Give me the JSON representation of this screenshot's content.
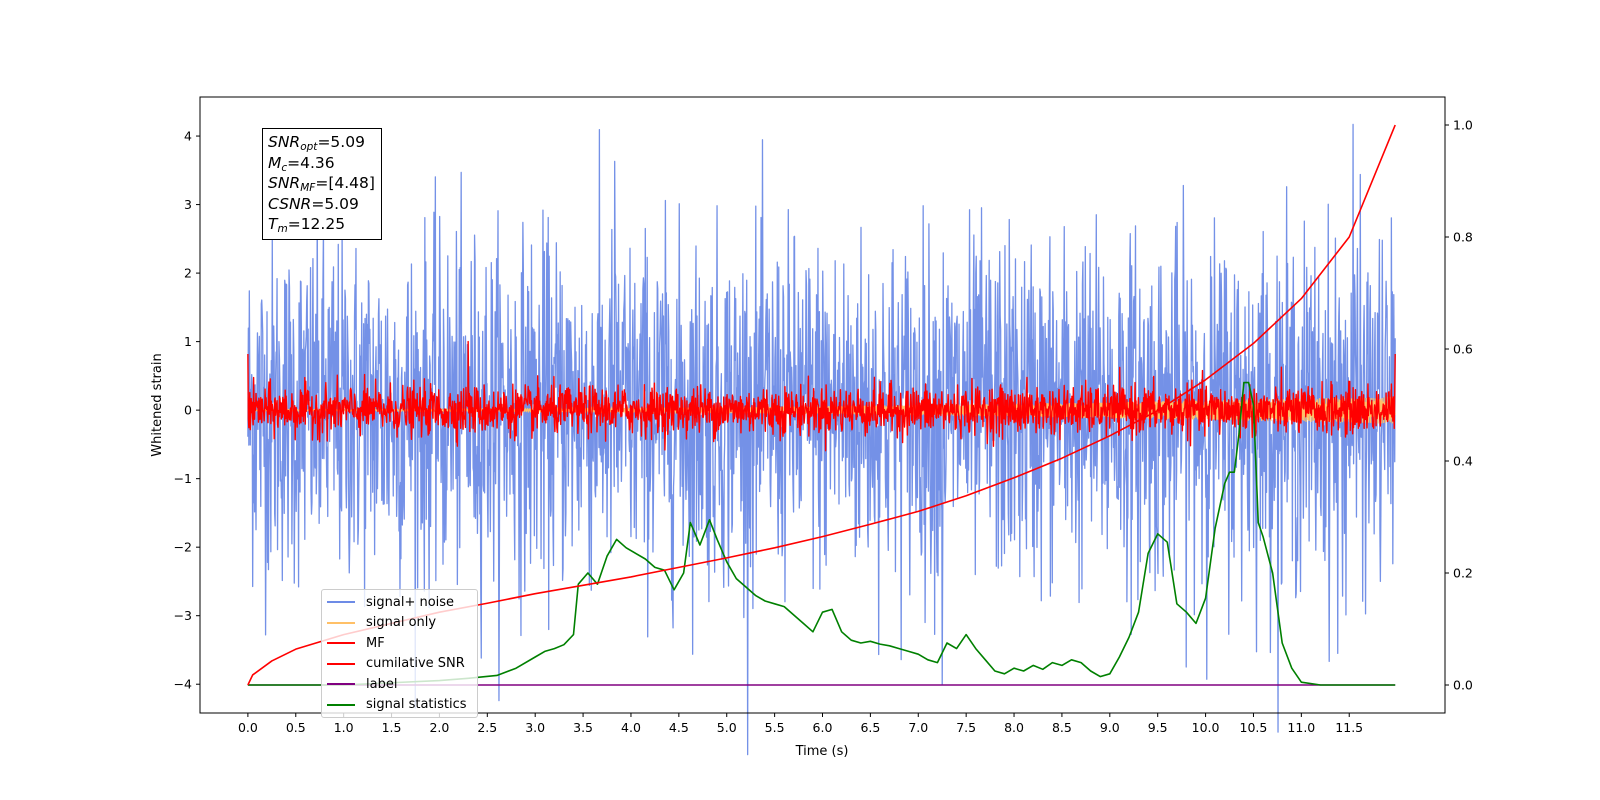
{
  "chart_data": {
    "type": "line",
    "xlabel": "Time (s)",
    "ylabel": "Whitened strain",
    "x_ticks": [
      0.0,
      0.5,
      1.0,
      1.5,
      2.0,
      2.5,
      3.0,
      3.5,
      4.0,
      4.5,
      5.0,
      5.5,
      6.0,
      6.5,
      7.0,
      7.5,
      8.0,
      8.5,
      9.0,
      9.5,
      10.0,
      10.5,
      11.0,
      11.5
    ],
    "x_tick_labels": [
      "0.0",
      "0.5",
      "1.0",
      "1.5",
      "2.0",
      "2.5",
      "3.0",
      "3.5",
      "4.0",
      "4.5",
      "5.0",
      "5.5",
      "6.0",
      "6.5",
      "7.0",
      "7.5",
      "8.0",
      "8.5",
      "9.0",
      "9.5",
      "10.0",
      "10.5",
      "11.0",
      "11.5"
    ],
    "xlim": [
      -0.5,
      12.5
    ],
    "ylim_left": [
      -4.42,
      4.57
    ],
    "y_left_ticks": [
      4,
      3,
      2,
      1,
      0,
      -1,
      -2,
      -3,
      -4
    ],
    "y_left_tick_labels": [
      "4",
      "3",
      "2",
      "1",
      "0",
      "−1",
      "−2",
      "−3",
      "−4"
    ],
    "ylim_right": [
      -0.05,
      1.05
    ],
    "y_right_ticks": [
      1.0,
      0.8,
      0.6,
      0.4,
      0.2,
      0.0
    ],
    "y_right_tick_labels": [
      "1.0",
      "0.8",
      "0.6",
      "0.4",
      "0.2",
      "0.0"
    ],
    "grid": false,
    "legend_position": "lower-left",
    "series": [
      {
        "name": "signal+ noise",
        "color": "#6d8be6",
        "axis": "left",
        "kind": "noise",
        "t_start": 0.0,
        "t_end": 11.98,
        "band": [
          -2.5,
          2.5
        ],
        "extremes": [
          {
            "x": 3.83,
            "y": 3.63
          },
          {
            "x": 11.54,
            "y": 4.17
          },
          {
            "x": 7.25,
            "y": -4.0
          },
          {
            "x": 11.38,
            "y": -3.55
          }
        ]
      },
      {
        "name": "signal only",
        "color": "#ffc067",
        "axis": "left",
        "kind": "chirp",
        "t_start": 0.0,
        "t_end": 11.98,
        "amplitude_start": 0.01,
        "amplitude_end": 0.2
      },
      {
        "name": "MF",
        "color": "#ff0000",
        "axis": "left",
        "kind": "noise",
        "t_start": 0.0,
        "t_end": 11.98,
        "band": [
          -0.35,
          0.35
        ],
        "extremes": [
          {
            "x": 0.0,
            "y": 0.82
          },
          {
            "x": 2.3,
            "y": 1.0
          },
          {
            "x": 11.98,
            "y": 0.82
          }
        ]
      },
      {
        "name": "cumilative SNR",
        "color": "#ff0000",
        "axis": "right",
        "kind": "line",
        "x": [
          0.0,
          0.05,
          0.25,
          0.5,
          1.0,
          1.5,
          2.0,
          2.5,
          3.0,
          3.5,
          4.0,
          4.5,
          5.0,
          5.5,
          6.0,
          6.5,
          7.0,
          7.5,
          8.0,
          8.5,
          9.0,
          9.5,
          10.0,
          10.5,
          11.0,
          11.5,
          11.98
        ],
        "y": [
          0.0,
          0.018,
          0.043,
          0.064,
          0.09,
          0.11,
          0.13,
          0.146,
          0.163,
          0.178,
          0.193,
          0.21,
          0.227,
          0.245,
          0.265,
          0.287,
          0.31,
          0.338,
          0.37,
          0.405,
          0.445,
          0.49,
          0.545,
          0.61,
          0.69,
          0.8,
          1.0
        ]
      },
      {
        "name": "label",
        "color": "#800080",
        "axis": "right",
        "kind": "line",
        "x": [
          0.0,
          11.98
        ],
        "y": [
          0.0,
          0.0
        ]
      },
      {
        "name": "signal statistics",
        "color": "#008000",
        "axis": "right",
        "kind": "line",
        "x": [
          0.0,
          0.5,
          1.0,
          1.5,
          2.0,
          2.3,
          2.6,
          2.8,
          3.0,
          3.1,
          3.2,
          3.3,
          3.4,
          3.45,
          3.55,
          3.65,
          3.75,
          3.85,
          3.95,
          4.05,
          4.15,
          4.25,
          4.35,
          4.45,
          4.55,
          4.62,
          4.72,
          4.82,
          4.9,
          5.0,
          5.1,
          5.2,
          5.3,
          5.4,
          5.5,
          5.6,
          5.7,
          5.8,
          5.9,
          6.0,
          6.1,
          6.2,
          6.3,
          6.4,
          6.5,
          6.6,
          6.7,
          6.8,
          6.9,
          7.0,
          7.1,
          7.2,
          7.3,
          7.4,
          7.5,
          7.6,
          7.7,
          7.8,
          7.9,
          8.0,
          8.1,
          8.2,
          8.3,
          8.4,
          8.5,
          8.6,
          8.7,
          8.8,
          8.9,
          9.0,
          9.1,
          9.2,
          9.3,
          9.4,
          9.5,
          9.6,
          9.7,
          9.8,
          9.9,
          10.0,
          10.1,
          10.2,
          10.25,
          10.3,
          10.35,
          10.4,
          10.45,
          10.5,
          10.55,
          10.6,
          10.7,
          10.8,
          10.9,
          11.0,
          11.2,
          11.98
        ],
        "y": [
          0.0,
          0.0,
          0.0,
          0.004,
          0.008,
          0.012,
          0.017,
          0.03,
          0.05,
          0.06,
          0.065,
          0.072,
          0.09,
          0.18,
          0.2,
          0.18,
          0.23,
          0.26,
          0.245,
          0.235,
          0.225,
          0.21,
          0.205,
          0.17,
          0.2,
          0.29,
          0.25,
          0.295,
          0.26,
          0.22,
          0.19,
          0.175,
          0.16,
          0.15,
          0.145,
          0.14,
          0.125,
          0.11,
          0.095,
          0.13,
          0.135,
          0.095,
          0.08,
          0.075,
          0.078,
          0.073,
          0.07,
          0.065,
          0.06,
          0.055,
          0.045,
          0.04,
          0.075,
          0.065,
          0.09,
          0.065,
          0.045,
          0.025,
          0.02,
          0.03,
          0.025,
          0.035,
          0.028,
          0.04,
          0.035,
          0.045,
          0.04,
          0.025,
          0.015,
          0.02,
          0.05,
          0.085,
          0.13,
          0.235,
          0.27,
          0.255,
          0.145,
          0.13,
          0.11,
          0.155,
          0.28,
          0.36,
          0.38,
          0.38,
          0.45,
          0.54,
          0.54,
          0.5,
          0.29,
          0.265,
          0.2,
          0.075,
          0.03,
          0.005,
          0.0,
          0.0
        ]
      }
    ],
    "annotation": {
      "lines": [
        {
          "sym": "SNR",
          "sub": "opt",
          "value": "=5.09"
        },
        {
          "sym": "M",
          "sub": "c",
          "value": "=4.36"
        },
        {
          "sym": "SNR",
          "sub": "MF",
          "value": "=[4.48]"
        },
        {
          "sym": "CSNR",
          "sub": "",
          "value": "=5.09"
        },
        {
          "sym": "T",
          "sub": "m",
          "value": "=12.25"
        }
      ]
    }
  }
}
